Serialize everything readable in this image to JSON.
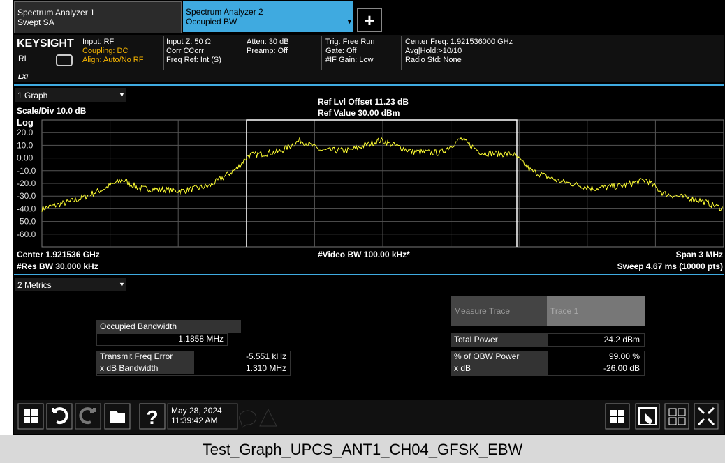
{
  "tabs": [
    {
      "title": "Spectrum Analyzer 1",
      "subtitle": "Swept SA"
    },
    {
      "title": "Spectrum Analyzer 2",
      "subtitle": "Occupied BW"
    }
  ],
  "info": {
    "brand": "KEYSIGHT",
    "rl": "RL",
    "lxi": "LXI",
    "col1": [
      "Input: RF",
      "Coupling: DC",
      "Align: Auto/No RF"
    ],
    "col2": [
      "Input Z: 50 Ω",
      "Corr CCorr",
      "Freq Ref: Int (S)"
    ],
    "col3": [
      "Atten: 30 dB",
      "Preamp: Off"
    ],
    "col4": [
      "Trig: Free Run",
      "Gate: Off",
      "#IF Gain: Low"
    ],
    "col5": [
      "Center Freq: 1.921536000 GHz",
      "Avg|Hold:>10/10",
      "Radio Std: None"
    ]
  },
  "graph": {
    "window": "1 Graph",
    "scale": "Scale/Div 10.0 dB",
    "log": "Log",
    "ref_offset": "Ref Lvl Offset 11.23 dB",
    "ref_value": "Ref Value 30.00 dBm",
    "y_labels": [
      "20.0",
      "10.0",
      "0.00",
      "-10.0",
      "-20.0",
      "-30.0",
      "-40.0",
      "-50.0",
      "-60.0"
    ],
    "center": "Center 1.921536 GHz",
    "video_bw": "#Video BW 100.00 kHz*",
    "span": "Span 3 MHz",
    "res_bw": "#Res BW 30.000 kHz",
    "sweep": "Sweep 4.67 ms (10000 pts)"
  },
  "metrics": {
    "window": "2 Metrics",
    "occupied_bandwidth": {
      "label": "Occupied Bandwidth",
      "value": "1.1858 MHz"
    },
    "left_rows": [
      [
        "Transmit Freq Error",
        "-5.551 kHz"
      ],
      [
        "x dB Bandwidth",
        "1.310 MHz"
      ]
    ],
    "measure_trace": [
      "Measure Trace",
      "Trace 1"
    ],
    "total_power": [
      "Total Power",
      "24.2 dBm"
    ],
    "right_rows": [
      [
        "% of OBW Power",
        "99.00 %"
      ],
      [
        "x dB",
        "-26.00 dB"
      ]
    ]
  },
  "toolbar": {
    "date": "May 28, 2024",
    "time": "11:39:42 AM"
  },
  "caption": "Test_Graph_UPCS_ANT1_CH04_GFSK_EBW"
}
